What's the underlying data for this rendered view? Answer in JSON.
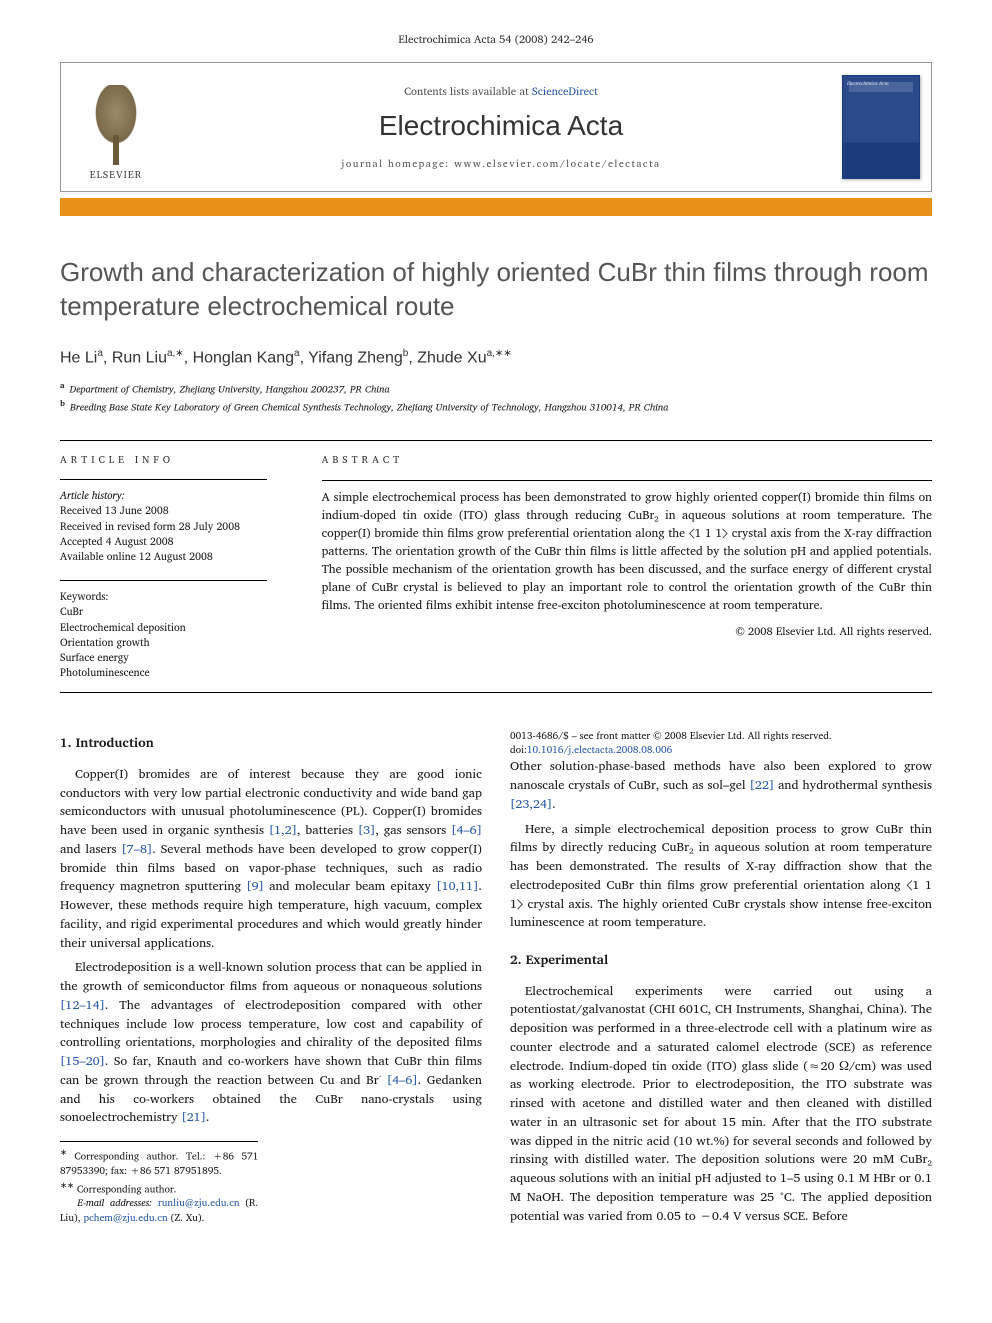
{
  "headerLine": "Electrochimica Acta 54 (2008) 242–246",
  "masthead": {
    "publisher": "ELSEVIER",
    "contentsPrefix": "Contents lists available at ",
    "contentsLink": "ScienceDirect",
    "journalName": "Electrochimica Acta",
    "homepagePrefix": "journal homepage: ",
    "homepageUrl": "www.elsevier.com/locate/electacta",
    "coverTitle": "Electrochimica Acta"
  },
  "colors": {
    "orangeBar": "#e8911a",
    "link": "#2a5aa8",
    "coverTop": "#2a4a8a",
    "coverBottom": "#1a3a7a",
    "titleGray": "#555555"
  },
  "title": "Growth and characterization of highly oriented CuBr thin films through room temperature electrochemical route",
  "authorsHtml": "He Li<sup>a</sup>, Run Liu<sup>a,∗</sup>, Honglan Kang<sup>a</sup>, Yifang Zheng<sup>b</sup>, Zhude Xu<sup>a,∗∗</sup>",
  "affiliations": [
    {
      "key": "a",
      "text": "Department of Chemistry, Zhejiang University, Hangzhou 200237, PR China"
    },
    {
      "key": "b",
      "text": "Breeding Base State Key Laboratory of Green Chemical Synthesis Technology, Zhejiang University of Technology, Hangzhou 310014, PR China"
    }
  ],
  "articleInfo": {
    "label": "ARTICLE INFO",
    "historyLabel": "Article history:",
    "history": [
      "Received 13 June 2008",
      "Received in revised form 28 July 2008",
      "Accepted 4 August 2008",
      "Available online 12 August 2008"
    ],
    "keywordsLabel": "Keywords:",
    "keywords": [
      "CuBr",
      "Electrochemical deposition",
      "Orientation growth",
      "Surface energy",
      "Photoluminescence"
    ]
  },
  "abstract": {
    "label": "ABSTRACT",
    "text": "A simple electrochemical process has been demonstrated to grow highly oriented copper(I) bromide thin films on indium-doped tin oxide (ITO) glass through reducing CuBr₂ in aqueous solutions at room temperature. The copper(I) bromide thin films grow preferential orientation along the ⟨1 1 1⟩ crystal axis from the X-ray diffraction patterns. The orientation growth of the CuBr thin films is little affected by the solution pH and applied potentials. The possible mechanism of the orientation growth has been discussed, and the surface energy of different crystal plane of CuBr crystal is believed to play an important role to control the orientation growth of the CuBr thin films. The oriented films exhibit intense free-exciton photoluminescence at room temperature.",
    "copyright": "© 2008 Elsevier Ltd. All rights reserved."
  },
  "sections": {
    "s1": {
      "heading": "1. Introduction",
      "p1": "Copper(I) bromides are of interest because they are good ionic conductors with very low partial electronic conductivity and wide band gap semiconductors with unusual photoluminescence (PL). Copper(I) bromides have been used in organic synthesis [1,2], batteries [3], gas sensors [4–6] and lasers [7–8]. Several methods have been developed to grow copper(I) bromide thin films based on vapor-phase techniques, such as radio frequency magnetron sputtering [9] and molecular beam epitaxy [10,11]. However, these methods require high temperature, high vacuum, complex facility, and rigid experimental procedures and which would greatly hinder their universal applications.",
      "p2": "Electrodeposition is a well-known solution process that can be applied in the growth of semiconductor films from aqueous or nonaqueous solutions [12–14]. The advantages of electrodeposition compared with other techniques include low process temperature, low cost and capability of controlling orientations, morphologies and chirality of the deposited films [15–20]. So far, Knauth and co-workers have shown that CuBr thin films can be grown through the reaction between Cu and Br⁻ [4–6]. Gedanken and his co-workers obtained the CuBr nano-crystals using sonoelectrochemistry [21].",
      "p3": "Other solution-phase-based methods have also been explored to grow nanoscale crystals of CuBr, such as sol–gel [22] and hydrothermal synthesis [23,24].",
      "p4": "Here, a simple electrochemical deposition process to grow CuBr thin films by directly reducing CuBr₂ in aqueous solution at room temperature has been demonstrated. The results of X-ray diffraction show that the electrodeposited CuBr thin films grow preferential orientation along ⟨1 1 1⟩ crystal axis. The highly oriented CuBr crystals show intense free-exciton luminescence at room temperature."
    },
    "s2": {
      "heading": "2. Experimental",
      "p1": "Electrochemical experiments were carried out using a potentiostat/galvanostat (CHI 601C, CH Instruments, Shanghai, China). The deposition was performed in a three-electrode cell with a platinum wire as counter electrode and a saturated calomel electrode (SCE) as reference electrode. Indium-doped tin oxide (ITO) glass slide (≈20 Ω/cm) was used as working electrode. Prior to electrodeposition, the ITO substrate was rinsed with acetone and distilled water and then cleaned with distilled water in an ultrasonic set for about 15 min. After that the ITO substrate was dipped in the nitric acid (10 wt.%) for several seconds and followed by rinsing with distilled water. The deposition solutions were 20 mM CuBr₂ aqueous solutions with an initial pH adjusted to 1–5 using 0.1 M HBr or 0.1 M NaOH. The deposition temperature was 25 °C. The applied deposition potential was varied from 0.05 to −0.4 V versus SCE. Before"
    }
  },
  "footnotes": {
    "star1": "Corresponding author. Tel.: +86 571 87953390; fax: +86 571 87951895.",
    "star2": "Corresponding author.",
    "emailLabel": "E-mail addresses:",
    "email1": "runliu@zju.edu.cn",
    "email1who": "(R. Liu),",
    "email2": "pchem@zju.edu.cn",
    "email2who": "(Z. Xu)."
  },
  "doi": {
    "line1": "0013-4686/$ – see front matter © 2008 Elsevier Ltd. All rights reserved.",
    "doiLabel": "doi:",
    "doiValue": "10.1016/j.electacta.2008.08.006"
  }
}
